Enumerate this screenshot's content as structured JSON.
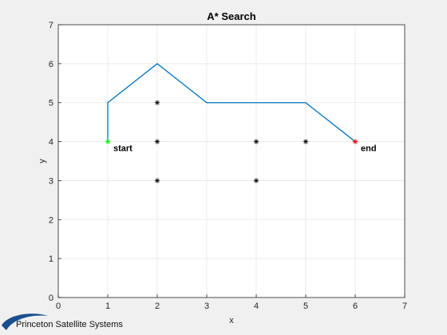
{
  "chart_data": {
    "type": "line",
    "title": "A* Search",
    "xlabel": "x",
    "ylabel": "y",
    "xlim": [
      0,
      7
    ],
    "ylim": [
      0,
      7
    ],
    "xticks": [
      0,
      1,
      2,
      3,
      4,
      5,
      6,
      7
    ],
    "yticks": [
      0,
      1,
      2,
      3,
      4,
      5,
      6,
      7
    ],
    "grid": true,
    "path": {
      "color": "#0072bd",
      "x": [
        1,
        1,
        2,
        3,
        4,
        5,
        6
      ],
      "y": [
        4,
        5,
        6,
        5,
        5,
        5,
        4
      ]
    },
    "obstacles": {
      "marker": "*",
      "color": "#000000",
      "x": [
        2,
        2,
        2,
        4,
        4,
        5
      ],
      "y": [
        5,
        4,
        3,
        4,
        3,
        4
      ]
    },
    "start": {
      "x": 1,
      "y": 4,
      "label": "start",
      "color": "#00ff00"
    },
    "end": {
      "x": 6,
      "y": 4,
      "label": "end",
      "color": "#ff0000"
    }
  },
  "footer": {
    "logo_text": "Princeton Satellite Systems",
    "logo_color": "#1a4f8f"
  }
}
